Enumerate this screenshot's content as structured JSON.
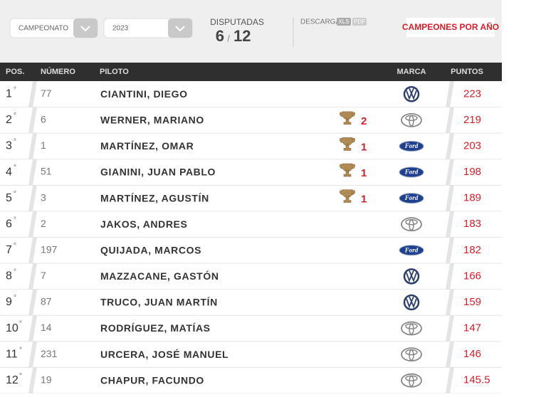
{
  "filters": {
    "championship": "CAMPEONATO",
    "year": "2023"
  },
  "races": {
    "label": "DISPUTADAS",
    "played": 6,
    "separator": "/",
    "total": 12
  },
  "download": {
    "label": "DESCARGAR",
    "formats": [
      "XLS",
      "PDF"
    ]
  },
  "champions_button": "CAMPEONES POR AÑO",
  "table": {
    "columns": [
      "POS.",
      "NÚMERO",
      "PILOTO",
      "MARCA",
      "PUNTOS"
    ],
    "ordinal_mark": "°",
    "rows": [
      {
        "pos": 1,
        "number": 77,
        "driver": "CIANTINI, DIEGO",
        "wins": null,
        "brand": "VW",
        "points": 223
      },
      {
        "pos": 2,
        "number": 6,
        "driver": "WERNER, MARIANO",
        "wins": 2,
        "brand": "Toyota",
        "points": 219
      },
      {
        "pos": 3,
        "number": 1,
        "driver": "MARTÍNEZ, OMAR",
        "wins": 1,
        "brand": "Ford",
        "points": 203
      },
      {
        "pos": 4,
        "number": 51,
        "driver": "GIANINI, JUAN PABLO",
        "wins": 1,
        "brand": "Ford",
        "points": 198
      },
      {
        "pos": 5,
        "number": 3,
        "driver": "MARTÍNEZ, AGUSTÍN",
        "wins": 1,
        "brand": "Ford",
        "points": 189
      },
      {
        "pos": 6,
        "number": 2,
        "driver": "JAKOS, ANDRES",
        "wins": null,
        "brand": "Toyota",
        "points": 183
      },
      {
        "pos": 7,
        "number": 197,
        "driver": "QUIJADA, MARCOS",
        "wins": null,
        "brand": "Ford",
        "points": 182
      },
      {
        "pos": 8,
        "number": 7,
        "driver": "MAZZACANE, GASTÓN",
        "wins": null,
        "brand": "VW",
        "points": 166
      },
      {
        "pos": 9,
        "number": 87,
        "driver": "TRUCO, JUAN MARTÍN",
        "wins": null,
        "brand": "VW",
        "points": 159
      },
      {
        "pos": 10,
        "number": 14,
        "driver": "RODRÍGUEZ, MATÍAS",
        "wins": null,
        "brand": "Toyota",
        "points": 147
      },
      {
        "pos": 11,
        "number": 231,
        "driver": "URCERA, JOSÉ MANUEL",
        "wins": null,
        "brand": "Toyota",
        "points": 146
      },
      {
        "pos": 12,
        "number": 19,
        "driver": "CHAPUR, FACUNDO",
        "wins": null,
        "brand": "Toyota",
        "points": 145.5
      }
    ]
  }
}
